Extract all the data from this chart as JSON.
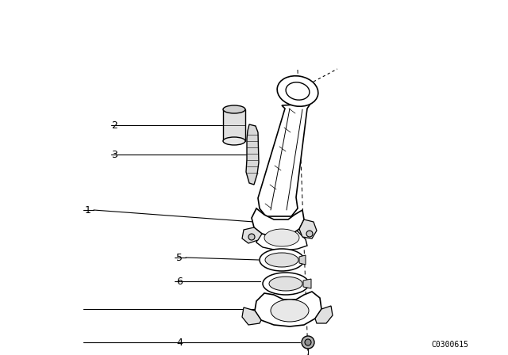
{
  "bg_color": "#ffffff",
  "line_color": "#000000",
  "catalog_number": "C0300615",
  "figsize": [
    6.4,
    4.48
  ],
  "dpi": 100
}
